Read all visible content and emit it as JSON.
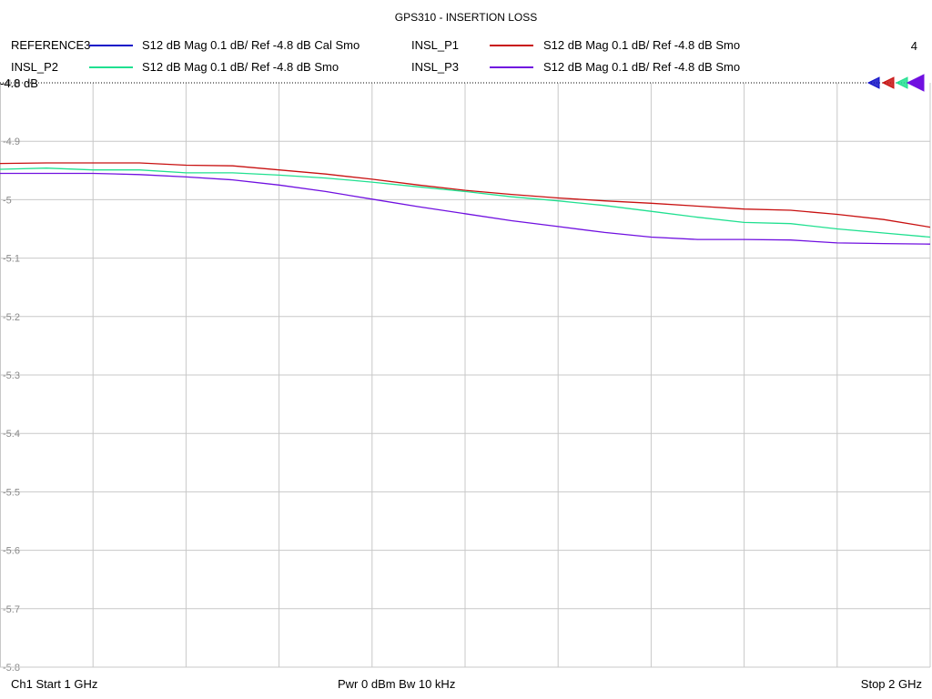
{
  "title": "GPS310 - INSERTION LOSS",
  "channel_number": "4",
  "reference_level_label": "-4.8 dB",
  "traces": [
    {
      "name": "REFERENCE3",
      "color": "#1010c8",
      "desc": "S12  dB Mag  0.1 dB/ Ref -4.8 dB  Cal Smo"
    },
    {
      "name": "INSL_P1",
      "color": "#c81010",
      "desc": "S12  dB Mag  0.1 dB/ Ref -4.8 dB  Smo"
    },
    {
      "name": "INSL_P2",
      "color": "#20e090",
      "desc": "S12  dB Mag  0.1 dB/ Ref -4.8 dB  Smo"
    },
    {
      "name": "INSL_P3",
      "color": "#7010e0",
      "desc": "S12  dB Mag  0.1 dB/ Ref -4.8 dB  Smo"
    }
  ],
  "footer": {
    "left": "Ch1  Start  1 GHz",
    "center": "Pwr  0 dBm  Bw  10 kHz",
    "right": "Stop  2 GHz"
  },
  "chart_data": {
    "type": "line",
    "title": "GPS310 - INSERTION LOSS",
    "xlabel": "",
    "ylabel": "",
    "xlim": [
      1,
      2
    ],
    "ylim": [
      -5.8,
      -4.8
    ],
    "y_ticks": [
      -4.8,
      -4.9,
      -5,
      -5.1,
      -5.2,
      -5.3,
      -5.4,
      -5.5,
      -5.6,
      -5.7,
      -5.8
    ],
    "x_divisions": 10,
    "grid": true,
    "x": [
      1.0,
      1.05,
      1.1,
      1.15,
      1.2,
      1.25,
      1.3,
      1.35,
      1.4,
      1.45,
      1.5,
      1.55,
      1.6,
      1.65,
      1.7,
      1.75,
      1.8,
      1.85,
      1.9,
      1.95,
      2.0
    ],
    "series": [
      {
        "name": "INSL_P1",
        "color": "#c81010",
        "values": [
          -4.938,
          -4.937,
          -4.937,
          -4.937,
          -4.941,
          -4.942,
          -4.949,
          -4.956,
          -4.965,
          -4.975,
          -4.984,
          -4.991,
          -4.997,
          -5.002,
          -5.006,
          -5.011,
          -5.016,
          -5.018,
          -5.025,
          -5.034,
          -5.047
        ]
      },
      {
        "name": "INSL_P2",
        "color": "#20e090",
        "values": [
          -4.948,
          -4.946,
          -4.949,
          -4.949,
          -4.954,
          -4.954,
          -4.958,
          -4.963,
          -4.97,
          -4.978,
          -4.986,
          -4.995,
          -5.002,
          -5.01,
          -5.02,
          -5.03,
          -5.039,
          -5.041,
          -5.05,
          -5.057,
          -5.064
        ]
      },
      {
        "name": "INSL_P3",
        "color": "#7010e0",
        "values": [
          -4.955,
          -4.955,
          -4.955,
          -4.957,
          -4.961,
          -4.966,
          -4.975,
          -4.986,
          -4.999,
          -5.012,
          -5.024,
          -5.036,
          -5.046,
          -5.056,
          -5.064,
          -5.068,
          -5.068,
          -5.069,
          -5.074,
          -5.075,
          -5.076
        ]
      }
    ]
  }
}
